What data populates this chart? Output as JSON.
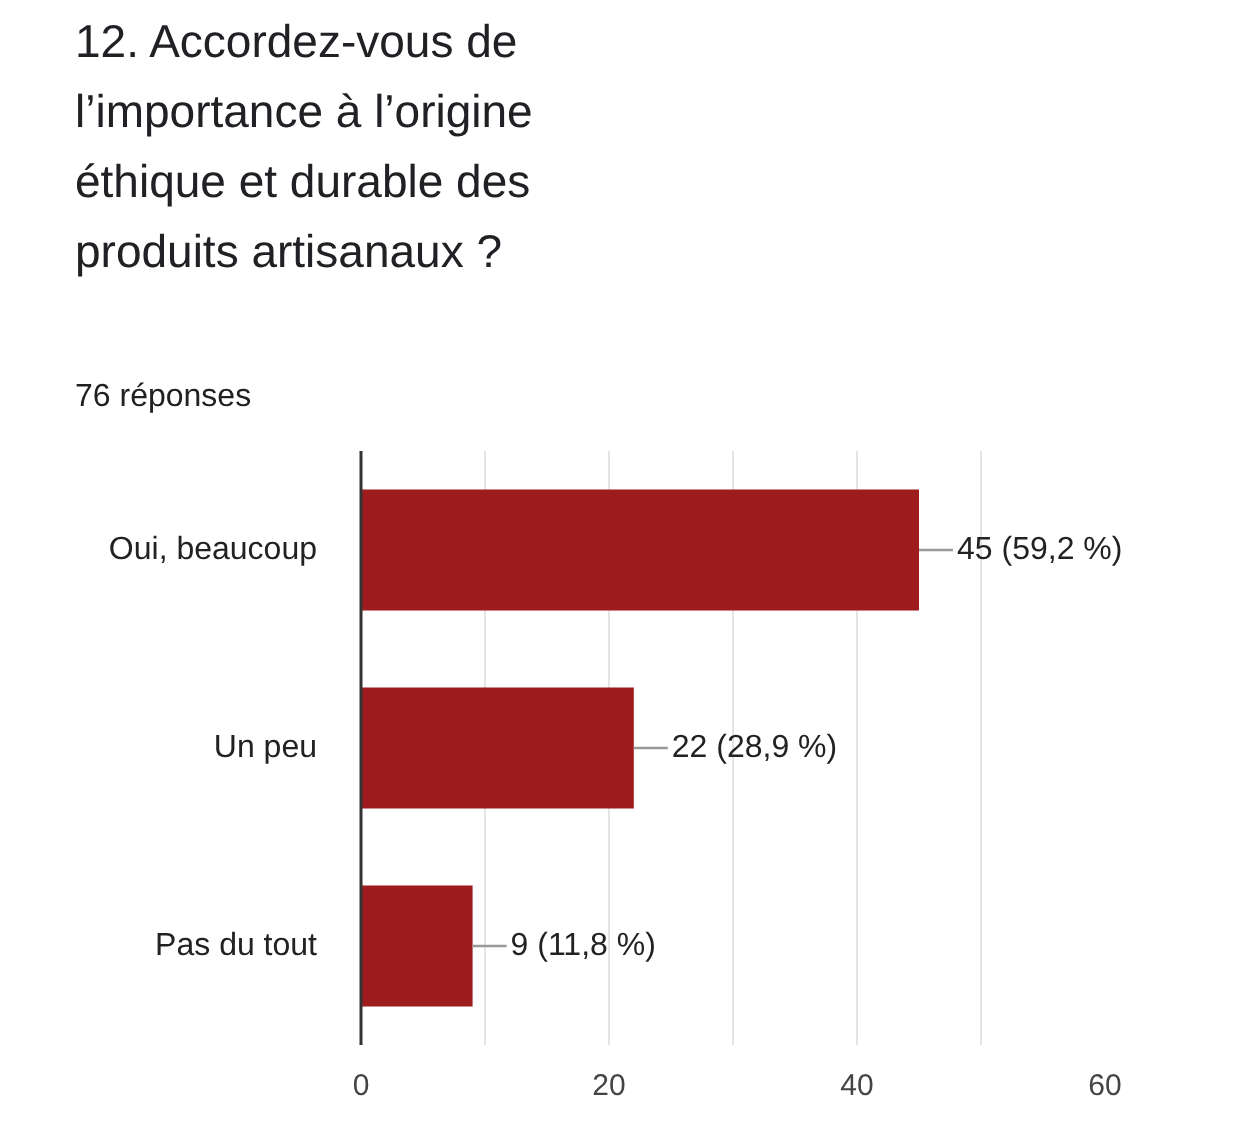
{
  "chart_data": {
    "type": "bar",
    "orientation": "horizontal",
    "title": "12. Accordez-vous de l’importance à l’origine éthique et durable des produits artisanaux ?",
    "subtitle": "76 réponses",
    "categories": [
      "Oui, beaucoup",
      "Un peu",
      "Pas du tout"
    ],
    "values": [
      45,
      22,
      9
    ],
    "color": "#9e1b1e",
    "value_labels": [
      "45 (59,2 %)",
      "22 (28,9 %)",
      "9 (11,8 %)"
    ],
    "xlim": [
      0,
      60
    ],
    "xticks": [
      0,
      {
        "value": 10,
        "label": null
      },
      20,
      {
        "value": 30,
        "label": null
      },
      40,
      {
        "value": 50,
        "label": null
      },
      60
    ],
    "grid": "x"
  }
}
